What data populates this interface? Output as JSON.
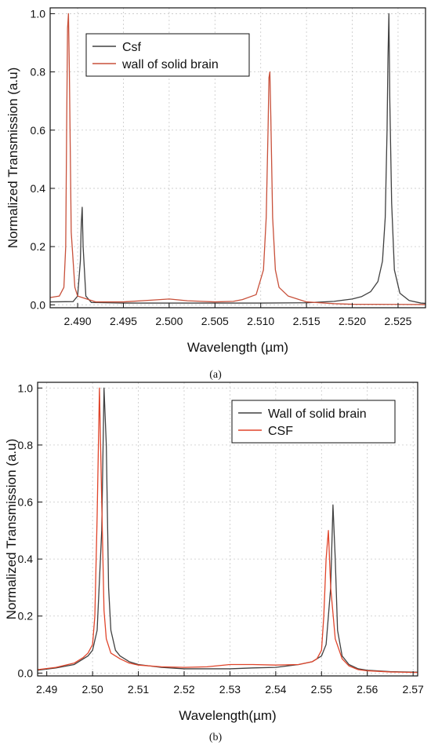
{
  "chart_data": [
    {
      "type": "line",
      "panel": "(a)",
      "xlabel": "Wavelength (µm)",
      "ylabel": "Normalized Transmission (a.u)",
      "xlim": [
        2.487,
        2.528
      ],
      "ylim": [
        -0.01,
        1.02
      ],
      "xticks": [
        2.49,
        2.495,
        2.5,
        2.505,
        2.51,
        2.515,
        2.52,
        2.525
      ],
      "xtick_labels": [
        "2.490",
        "2.495",
        "2.500",
        "2.505",
        "2.510",
        "2.515",
        "2.520",
        "2.525"
      ],
      "yticks": [
        0.0,
        0.2,
        0.4,
        0.6,
        0.8,
        1.0
      ],
      "ytick_labels": [
        "0.0",
        "0.2",
        "0.4",
        "0.6",
        "0.8",
        "1.0"
      ],
      "grid": true,
      "legend": "top-left",
      "series": [
        {
          "name": "Csf",
          "color": "#404040",
          "x": [
            2.487,
            2.4895,
            2.49,
            2.4903,
            2.4904,
            2.4905,
            2.4906,
            2.4909,
            2.4915,
            2.495,
            2.5,
            2.505,
            2.51,
            2.515,
            2.518,
            2.52,
            2.521,
            2.522,
            2.5228,
            2.5233,
            2.5236,
            2.5238,
            2.5239,
            2.524,
            2.5241,
            2.5243,
            2.5246,
            2.5252,
            2.5262,
            2.5275,
            2.528
          ],
          "y": [
            0.01,
            0.011,
            0.03,
            0.15,
            0.28,
            0.335,
            0.2,
            0.03,
            0.008,
            0.006,
            0.006,
            0.006,
            0.006,
            0.007,
            0.012,
            0.02,
            0.028,
            0.045,
            0.08,
            0.15,
            0.3,
            0.6,
            0.85,
            1.0,
            0.7,
            0.35,
            0.12,
            0.04,
            0.015,
            0.006,
            0.005
          ]
        },
        {
          "name": "wall of solid brain",
          "color": "#c8503a",
          "x": [
            2.487,
            2.488,
            2.4885,
            2.4887,
            2.4888,
            2.4889,
            2.489,
            2.4891,
            2.4893,
            2.4897,
            2.49,
            2.492,
            2.495,
            2.498,
            2.5,
            2.502,
            2.505,
            2.507,
            2.508,
            2.5095,
            2.5103,
            2.5106,
            2.5108,
            2.5109,
            2.511,
            2.5111,
            2.5113,
            2.5116,
            2.512,
            2.513,
            2.515,
            2.518,
            2.52,
            2.528
          ],
          "y": [
            0.025,
            0.03,
            0.06,
            0.2,
            0.6,
            0.95,
            1.0,
            0.8,
            0.25,
            0.06,
            0.03,
            0.01,
            0.01,
            0.016,
            0.02,
            0.014,
            0.01,
            0.012,
            0.018,
            0.035,
            0.12,
            0.3,
            0.6,
            0.78,
            0.8,
            0.65,
            0.3,
            0.12,
            0.06,
            0.03,
            0.01,
            0.004,
            0.002,
            0.001
          ]
        }
      ]
    },
    {
      "type": "line",
      "panel": "(b)",
      "xlabel": "Wavelength(µm)",
      "ylabel": "Normalized Transmission (a.u)",
      "xlim": [
        2.488,
        2.571
      ],
      "ylim": [
        -0.01,
        1.02
      ],
      "xticks": [
        2.49,
        2.5,
        2.51,
        2.52,
        2.53,
        2.54,
        2.55,
        2.56,
        2.57
      ],
      "xtick_labels": [
        "2.49",
        "2.50",
        "2.51",
        "2.52",
        "2.53",
        "2.54",
        "2.55",
        "2.56",
        "2.57"
      ],
      "yticks": [
        0.0,
        0.2,
        0.4,
        0.6,
        0.8,
        1.0
      ],
      "ytick_labels": [
        "0.0",
        "0.2",
        "0.4",
        "0.6",
        "0.8",
        "1.0"
      ],
      "grid": true,
      "legend": "top-right",
      "series": [
        {
          "name": "Wall of solid brain",
          "color": "#404040",
          "x": [
            2.488,
            2.492,
            2.496,
            2.498,
            2.499,
            2.5,
            2.501,
            2.502,
            2.5025,
            2.503,
            2.5035,
            2.504,
            2.505,
            2.506,
            2.508,
            2.51,
            2.515,
            2.52,
            2.525,
            2.53,
            2.535,
            2.54,
            2.545,
            2.548,
            2.55,
            2.551,
            2.552,
            2.5525,
            2.553,
            2.5535,
            2.5545,
            2.556,
            2.558,
            2.56,
            2.565,
            2.571
          ],
          "y": [
            0.01,
            0.018,
            0.03,
            0.05,
            0.06,
            0.08,
            0.15,
            0.5,
            1.0,
            0.8,
            0.3,
            0.15,
            0.08,
            0.06,
            0.04,
            0.03,
            0.02,
            0.015,
            0.015,
            0.015,
            0.018,
            0.02,
            0.03,
            0.04,
            0.06,
            0.1,
            0.3,
            0.59,
            0.4,
            0.15,
            0.06,
            0.03,
            0.015,
            0.01,
            0.005,
            0.003
          ]
        },
        {
          "name": "CSF",
          "color": "#e0452b",
          "x": [
            2.488,
            2.492,
            2.496,
            2.498,
            2.499,
            2.5,
            2.5005,
            2.501,
            2.5015,
            2.502,
            2.5025,
            2.503,
            2.504,
            2.506,
            2.508,
            2.51,
            2.515,
            2.52,
            2.525,
            2.53,
            2.535,
            2.54,
            2.545,
            2.548,
            2.549,
            2.55,
            2.5505,
            2.551,
            2.5515,
            2.552,
            2.553,
            2.5545,
            2.556,
            2.558,
            2.56,
            2.565,
            2.571
          ],
          "y": [
            0.012,
            0.02,
            0.035,
            0.055,
            0.07,
            0.1,
            0.2,
            0.55,
            1.0,
            0.6,
            0.22,
            0.12,
            0.07,
            0.05,
            0.035,
            0.028,
            0.022,
            0.02,
            0.022,
            0.03,
            0.03,
            0.028,
            0.03,
            0.04,
            0.05,
            0.08,
            0.2,
            0.4,
            0.5,
            0.3,
            0.12,
            0.05,
            0.025,
            0.012,
            0.008,
            0.004,
            0.002
          ]
        }
      ]
    }
  ]
}
